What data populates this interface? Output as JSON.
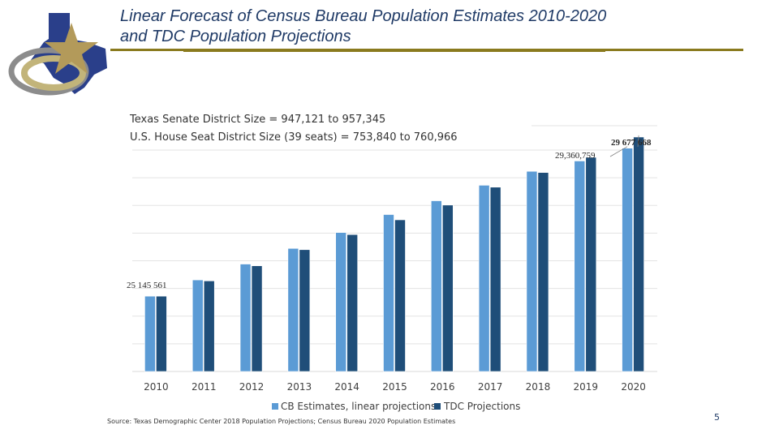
{
  "title_line1": "Linear Forecast of Census Bureau Population Estimates 2010-2020",
  "title_line2": "and TDC Population Projections",
  "notes": {
    "senate": "Texas Senate District Size = 947,121 to 957,345",
    "house": "U.S. House Seat District Size (39 seats) = 753,840 to 760,966"
  },
  "source": "Source: Texas Demographic Center 2018 Population Projections; Census Bureau 2020 Population Estimates",
  "page_number": "5",
  "colors": {
    "cb": "#5b9bd5",
    "tdc": "#1f4e79",
    "title": "#1f3a66",
    "rule": "#8a7a1e"
  },
  "chart_data": {
    "type": "bar",
    "categories": [
      "2010",
      "2011",
      "2012",
      "2013",
      "2014",
      "2015",
      "2016",
      "2017",
      "2018",
      "2019",
      "2020"
    ],
    "series": [
      {
        "name": "CB Estimates, linear projections",
        "values": [
          25145561,
          25608000,
          26060000,
          26505000,
          26958000,
          27470000,
          27862000,
          28304000,
          28701000,
          28995881,
          29360759
        ]
      },
      {
        "name": "TDC Projections",
        "values": [
          25145561,
          25580000,
          26010000,
          26470000,
          26900000,
          27320000,
          27740000,
          28250000,
          28667000,
          29100000,
          29677668
        ]
      }
    ],
    "data_labels": [
      {
        "text": "25 145 561",
        "series": 1,
        "index": 0
      },
      {
        "text": "29,360,759",
        "series": 0,
        "index": 10
      },
      {
        "text": "29 677 668",
        "series": 1,
        "index": 10
      }
    ],
    "ylim": [
      23000000,
      30000000
    ],
    "grid": true,
    "legend_position": "bottom"
  }
}
